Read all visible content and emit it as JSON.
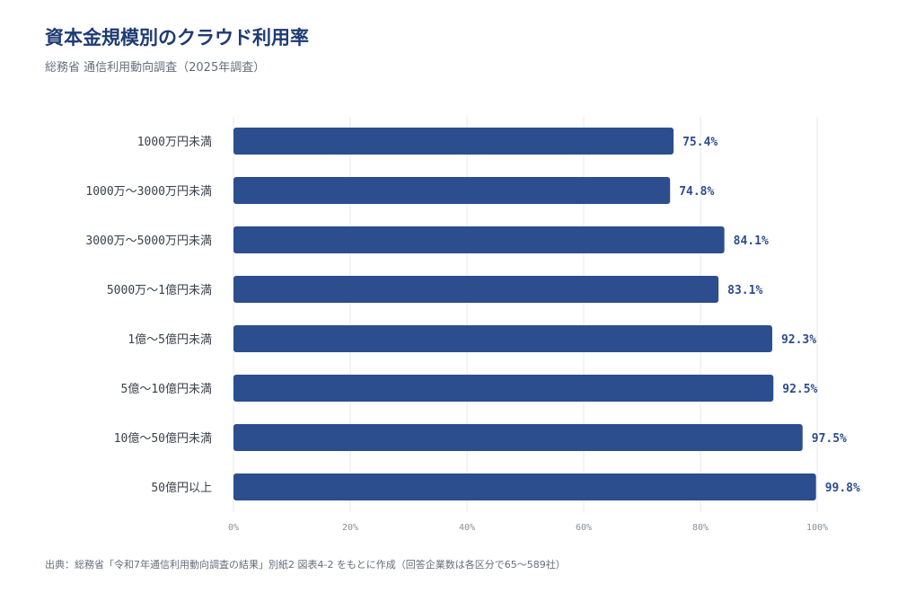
{
  "chart_data": {
    "type": "bar",
    "orientation": "horizontal",
    "title": "資本金規模別のクラウド利用率",
    "subtitle": "総務省 通信利用動向調査（2025年調査）",
    "source": "出典：総務省「令和7年通信利用動向調査の結果」別紙2 図表4-2 をもとに作成（回答企業数は各区分で65〜589社）",
    "categories": [
      "1000万円未満",
      "1000万〜3000万円未満",
      "3000万〜5000万円未満",
      "5000万〜1億円未満",
      "1億〜5億円未満",
      "5億〜10億円未満",
      "10億〜50億円未満",
      "50億円以上"
    ],
    "values": [
      75.4,
      74.8,
      84.1,
      83.1,
      92.3,
      92.5,
      97.5,
      99.8
    ],
    "value_labels": [
      "75.4%",
      "74.8%",
      "84.1%",
      "83.1%",
      "92.3%",
      "92.5%",
      "97.5%",
      "99.8%"
    ],
    "xlim": [
      0,
      100
    ],
    "xticks": [
      0,
      20,
      40,
      60,
      80,
      100
    ],
    "xtick_labels": [
      "0%",
      "20%",
      "40%",
      "60%",
      "80%",
      "100%"
    ],
    "grid": "vertical",
    "legend": "none",
    "colors": {
      "bar": "#2c4d8e",
      "grid": "#e6e8ec",
      "title": "#1f3b73"
    }
  }
}
